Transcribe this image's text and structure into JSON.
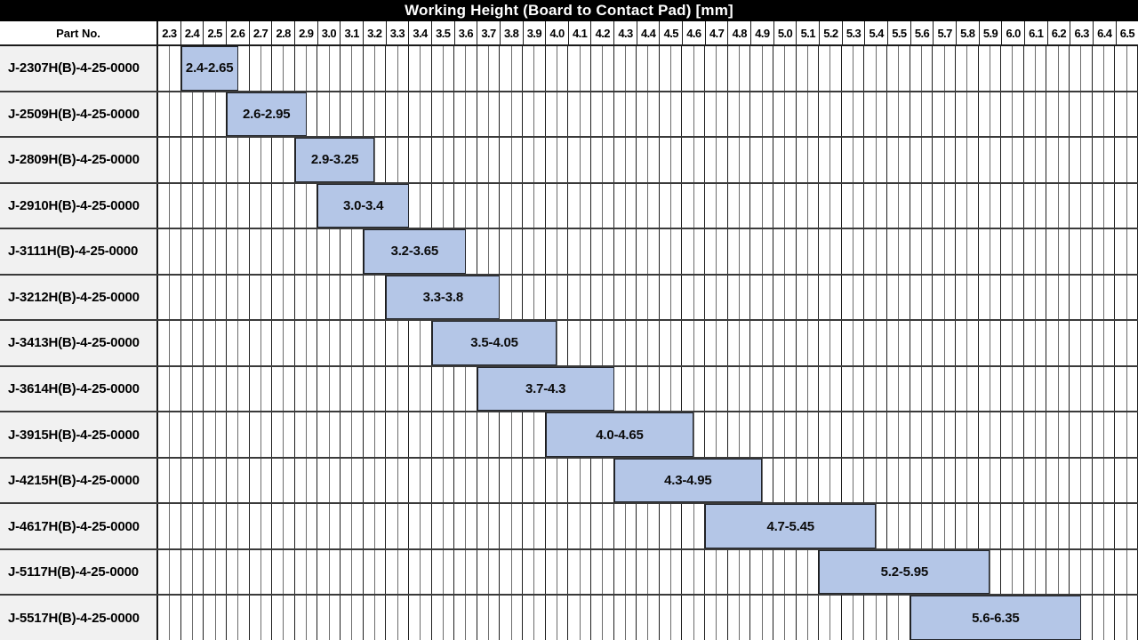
{
  "header": {
    "title": "Working Height (Board to Contact Pad) [mm]",
    "part_no_label": "Part No."
  },
  "colors": {
    "title_bg": "#000000",
    "title_fg": "#ffffff",
    "bar_fill": "#b4c6e7",
    "bar_border": "#23262c",
    "row_label_bg": "#f1f1f1",
    "gridline_major": "#1f1f1f",
    "gridline_minor": "#6c6c6c"
  },
  "chart_data": {
    "type": "bar",
    "subtype": "horizontal-range",
    "title": "Working Height (Board to Contact Pad) [mm]",
    "axis": {
      "min": 2.3,
      "max": 6.6,
      "step": 0.1,
      "minor_step": 0.05,
      "grid": true
    },
    "ticks": [
      "2.3",
      "2.4",
      "2.5",
      "2.6",
      "2.7",
      "2.8",
      "2.9",
      "3.0",
      "3.1",
      "3.2",
      "3.3",
      "3.4",
      "3.5",
      "3.6",
      "3.7",
      "3.8",
      "3.9",
      "4.0",
      "4.1",
      "4.2",
      "4.3",
      "4.4",
      "4.5",
      "4.6",
      "4.7",
      "4.8",
      "4.9",
      "5.0",
      "5.1",
      "5.2",
      "5.3",
      "5.4",
      "5.5",
      "5.6",
      "5.7",
      "5.8",
      "5.9",
      "6.0",
      "6.1",
      "6.2",
      "6.3",
      "6.4",
      "6.5"
    ],
    "series": [
      {
        "part": "J-2307H(B)-4-25-0000",
        "range_min": 2.4,
        "range_max": 2.65,
        "bar_label": "2.4-2.65"
      },
      {
        "part": "J-2509H(B)-4-25-0000",
        "range_min": 2.6,
        "range_max": 2.95,
        "bar_label": "2.6-2.95"
      },
      {
        "part": "J-2809H(B)-4-25-0000",
        "range_min": 2.9,
        "range_max": 3.25,
        "bar_label": "2.9-3.25"
      },
      {
        "part": "J-2910H(B)-4-25-0000",
        "range_min": 3.0,
        "range_max": 3.4,
        "bar_label": "3.0-3.4"
      },
      {
        "part": "J-3111H(B)-4-25-0000",
        "range_min": 3.2,
        "range_max": 3.65,
        "bar_label": "3.2-3.65"
      },
      {
        "part": "J-3212H(B)-4-25-0000",
        "range_min": 3.3,
        "range_max": 3.8,
        "bar_label": "3.3-3.8"
      },
      {
        "part": "J-3413H(B)-4-25-0000",
        "range_min": 3.5,
        "range_max": 4.05,
        "bar_label": "3.5-4.05"
      },
      {
        "part": "J-3614H(B)-4-25-0000",
        "range_min": 3.7,
        "range_max": 4.3,
        "bar_label": "3.7-4.3"
      },
      {
        "part": "J-3915H(B)-4-25-0000",
        "range_min": 4.0,
        "range_max": 4.65,
        "bar_label": "4.0-4.65"
      },
      {
        "part": "J-4215H(B)-4-25-0000",
        "range_min": 4.3,
        "range_max": 4.95,
        "bar_label": "4.3-4.95"
      },
      {
        "part": "J-4617H(B)-4-25-0000",
        "range_min": 4.7,
        "range_max": 5.45,
        "bar_label": "4.7-5.45"
      },
      {
        "part": "J-5117H(B)-4-25-0000",
        "range_min": 5.2,
        "range_max": 5.95,
        "bar_label": "5.2-5.95"
      },
      {
        "part": "J-5517H(B)-4-25-0000",
        "range_min": 5.6,
        "range_max": 6.35,
        "bar_label": "5.6-6.35"
      }
    ]
  }
}
